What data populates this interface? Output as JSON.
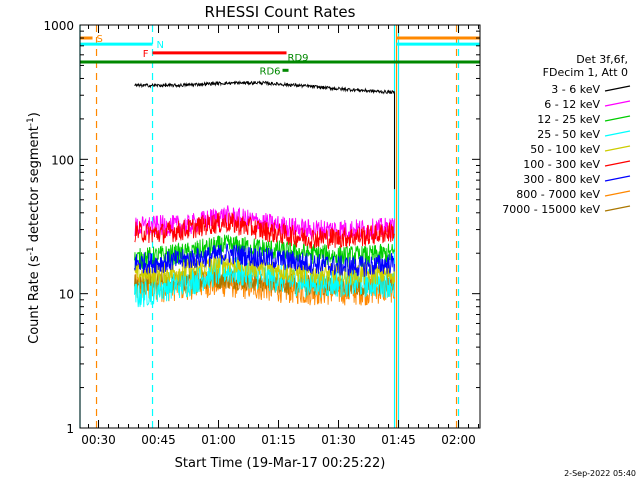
{
  "chart_data": {
    "type": "line",
    "title": "RHESSI Count Rates",
    "xlabel": "Start Time (19-Mar-17 00:25:22)",
    "ylabel": "Count Rate (s⁻¹ detector segment⁻¹)",
    "ylabel_parts": {
      "main": "Count Rate (s",
      "exp1": "-1",
      "mid": " detector segment",
      "exp2": "-1",
      "end": ")"
    },
    "yscale": "log",
    "ylim": [
      1,
      1000
    ],
    "xlim_minutes": [
      25.37,
      125.37
    ],
    "x_ticks": [
      {
        "label": "00:30",
        "minute": 30
      },
      {
        "label": "00:45",
        "minute": 45
      },
      {
        "label": "01:00",
        "minute": 60
      },
      {
        "label": "01:15",
        "minute": 75
      },
      {
        "label": "01:30",
        "minute": 90
      },
      {
        "label": "01:45",
        "minute": 105
      },
      {
        "label": "02:00",
        "minute": 120
      }
    ],
    "y_ticks": [
      {
        "label": "1",
        "value": 1
      },
      {
        "label": "10",
        "value": 10
      },
      {
        "label": "100",
        "value": 100
      },
      {
        "label": "1000",
        "value": 1000
      }
    ],
    "legend_header": [
      "Det 3f,6f,",
      "FDecim 1, Att 0"
    ],
    "legend_position": "right",
    "series": [
      {
        "name": "3 - 6 keV",
        "color": "#000000",
        "x": [
          39,
          50,
          60,
          70,
          80,
          90,
          100,
          104
        ],
        "y": [
          355,
          355,
          368,
          372,
          355,
          335,
          320,
          315
        ]
      },
      {
        "name": "6 - 12 keV",
        "color": "#ff00ff",
        "x": [
          39,
          45,
          52,
          58,
          62,
          68,
          75,
          82,
          90,
          97,
          104
        ],
        "y": [
          31,
          32,
          32,
          36,
          38,
          35,
          32,
          30,
          30,
          30,
          31
        ]
      },
      {
        "name": "12 - 25 keV",
        "color": "#00cc00",
        "x": [
          39,
          45,
          52,
          58,
          62,
          68,
          75,
          82,
          90,
          97,
          104
        ],
        "y": [
          18,
          19,
          20,
          22,
          23,
          22,
          21,
          20,
          19,
          19,
          20
        ]
      },
      {
        "name": "25 - 50 keV",
        "color": "#00ffff",
        "x": [
          39,
          45,
          52,
          58,
          62,
          68,
          75,
          82,
          90,
          97,
          104
        ],
        "y": [
          9.5,
          11,
          12,
          14,
          15,
          14,
          13,
          12,
          12,
          12,
          12
        ]
      },
      {
        "name": "50 - 100 keV",
        "color": "#cccc00",
        "x": [
          39,
          45,
          52,
          58,
          62,
          68,
          75,
          82,
          90,
          97,
          104
        ],
        "y": [
          14,
          14,
          15,
          16,
          17,
          16,
          15,
          14,
          14,
          14,
          14
        ]
      },
      {
        "name": "100 - 300 keV",
        "color": "#ff0000",
        "x": [
          39,
          45,
          52,
          58,
          62,
          68,
          75,
          82,
          90,
          97,
          104
        ],
        "y": [
          29,
          28,
          30,
          33,
          34,
          31,
          28,
          26,
          26,
          27,
          29
        ]
      },
      {
        "name": "300 - 800 keV",
        "color": "#0000ff",
        "x": [
          39,
          45,
          52,
          58,
          62,
          68,
          75,
          82,
          90,
          97,
          104
        ],
        "y": [
          17,
          17,
          18,
          19,
          20,
          19,
          18,
          17,
          16,
          16,
          17
        ]
      },
      {
        "name": "800 - 7000 keV",
        "color": "#ff8800",
        "x": [
          39,
          45,
          52,
          58,
          62,
          68,
          75,
          82,
          90,
          97,
          104
        ],
        "y": [
          11,
          11,
          11.5,
          12,
          12,
          11.5,
          11,
          10.5,
          10.5,
          10.5,
          11
        ]
      },
      {
        "name": "7000 - 15000 keV",
        "color": "#aa7700",
        "x": [
          39,
          45,
          52,
          58,
          62,
          68,
          75,
          82,
          90,
          97,
          104
        ],
        "y": [
          12,
          12,
          12.5,
          13,
          13,
          12.5,
          12,
          11.5,
          11.5,
          11.5,
          12
        ]
      }
    ],
    "flags": [
      {
        "label": "S",
        "color": "#ff8800",
        "x_start": 25.37,
        "x_end": 28.5,
        "y": 800
      },
      {
        "label": "N",
        "color": "#00ffff",
        "x_start": 25.37,
        "x_end": 43.5,
        "y": 720
      },
      {
        "label": "F",
        "color": "#ff0000",
        "x_start": 43.5,
        "x_end": 77,
        "y": 620
      },
      {
        "label": "RD9",
        "color": "#008800",
        "x_start": 25.37,
        "x_end": 125.37,
        "y": 530
      },
      {
        "label": "RD6",
        "color": "#008800",
        "x_start": 76,
        "x_end": 77.5,
        "y": 460
      },
      {
        "label": "",
        "color": "#ff8800",
        "x_start": 104.5,
        "x_end": 125.37,
        "y": 800
      },
      {
        "label": "",
        "color": "#00ffff",
        "x_start": 104.5,
        "x_end": 125.37,
        "y": 720
      }
    ],
    "vlines": [
      {
        "minute": 25.37,
        "color": "#00ffff",
        "style": "solid"
      },
      {
        "minute": 29.5,
        "color": "#ff8800",
        "style": "dashed"
      },
      {
        "minute": 43.5,
        "color": "#00ffff",
        "style": "dashed"
      },
      {
        "minute": 104,
        "color": "#00ffff",
        "style": "solid"
      },
      {
        "minute": 104.5,
        "color": "#ff8800",
        "style": "solid"
      },
      {
        "minute": 105,
        "color": "#00ffff",
        "style": "solid"
      },
      {
        "minute": 119.5,
        "color": "#ff8800",
        "style": "dashed"
      },
      {
        "minute": 120,
        "color": "#00ffff",
        "style": "dashed"
      }
    ]
  },
  "footer": {
    "timestamp": "2-Sep-2022 05:40"
  }
}
